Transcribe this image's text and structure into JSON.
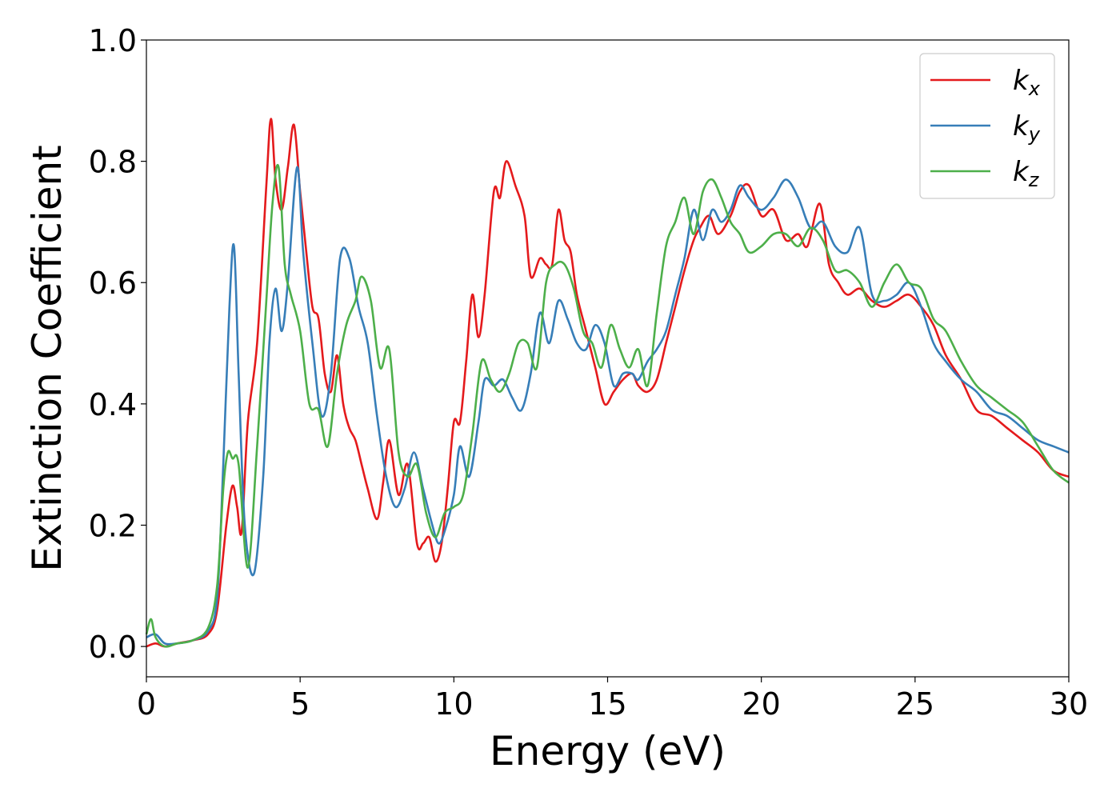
{
  "chart_data": {
    "type": "line",
    "xlabel": "Energy (eV)",
    "ylabel": "Extinction Coefficient",
    "xlim": [
      0,
      30
    ],
    "ylim": [
      -0.05,
      1.0
    ],
    "xticks": [
      0,
      5,
      10,
      15,
      20,
      25,
      30
    ],
    "yticks": [
      0.0,
      0.2,
      0.4,
      0.6,
      0.8,
      1.0
    ],
    "xtick_labels": [
      "0",
      "5",
      "10",
      "15",
      "20",
      "25",
      "30"
    ],
    "ytick_labels": [
      "0.0",
      "0.2",
      "0.4",
      "0.6",
      "0.8",
      "1.0"
    ],
    "grid": false,
    "legend_position": "top-right",
    "series": [
      {
        "name": "k",
        "subscript": "x",
        "color": "#e41a1c",
        "x": [
          0,
          0.3,
          0.6,
          1.0,
          1.5,
          2.0,
          2.3,
          2.6,
          2.8,
          2.95,
          3.1,
          3.3,
          3.6,
          3.9,
          4.05,
          4.2,
          4.4,
          4.6,
          4.8,
          5.0,
          5.2,
          5.4,
          5.6,
          5.8,
          6.0,
          6.2,
          6.4,
          6.6,
          6.8,
          7.0,
          7.2,
          7.5,
          7.7,
          7.9,
          8.2,
          8.5,
          8.8,
          9.0,
          9.2,
          9.4,
          9.6,
          9.8,
          10.0,
          10.2,
          10.4,
          10.6,
          10.8,
          11.0,
          11.3,
          11.5,
          11.7,
          12.0,
          12.3,
          12.5,
          12.8,
          13.0,
          13.2,
          13.4,
          13.6,
          13.8,
          14.0,
          14.3,
          14.6,
          14.9,
          15.2,
          15.5,
          15.8,
          16.0,
          16.3,
          16.6,
          16.9,
          17.2,
          17.5,
          17.8,
          18.0,
          18.3,
          18.6,
          19.0,
          19.3,
          19.6,
          20.0,
          20.4,
          20.8,
          21.2,
          21.5,
          21.9,
          22.2,
          22.5,
          22.8,
          23.2,
          23.6,
          24.0,
          24.4,
          24.8,
          25.2,
          25.6,
          26.0,
          26.5,
          27.0,
          27.5,
          28.0,
          28.5,
          29.0,
          29.5,
          30.0
        ],
        "y": [
          0.0,
          0.005,
          0.0,
          0.005,
          0.01,
          0.02,
          0.06,
          0.2,
          0.265,
          0.23,
          0.19,
          0.37,
          0.5,
          0.76,
          0.87,
          0.77,
          0.72,
          0.79,
          0.86,
          0.75,
          0.65,
          0.56,
          0.54,
          0.45,
          0.42,
          0.48,
          0.4,
          0.36,
          0.34,
          0.3,
          0.26,
          0.21,
          0.27,
          0.34,
          0.25,
          0.3,
          0.17,
          0.17,
          0.18,
          0.14,
          0.17,
          0.26,
          0.37,
          0.37,
          0.47,
          0.58,
          0.51,
          0.58,
          0.75,
          0.74,
          0.8,
          0.76,
          0.71,
          0.61,
          0.64,
          0.63,
          0.63,
          0.72,
          0.67,
          0.65,
          0.58,
          0.52,
          0.46,
          0.4,
          0.42,
          0.44,
          0.45,
          0.43,
          0.42,
          0.44,
          0.5,
          0.56,
          0.62,
          0.67,
          0.69,
          0.71,
          0.68,
          0.71,
          0.75,
          0.76,
          0.71,
          0.72,
          0.67,
          0.68,
          0.66,
          0.73,
          0.63,
          0.6,
          0.58,
          0.59,
          0.57,
          0.56,
          0.57,
          0.58,
          0.56,
          0.53,
          0.48,
          0.44,
          0.39,
          0.38,
          0.36,
          0.34,
          0.32,
          0.29,
          0.28
        ]
      },
      {
        "name": "k",
        "subscript": "y",
        "color": "#377eb8",
        "x": [
          0,
          0.3,
          0.6,
          1.0,
          1.5,
          2.0,
          2.3,
          2.5,
          2.7,
          2.85,
          3.0,
          3.2,
          3.5,
          3.8,
          4.0,
          4.2,
          4.4,
          4.6,
          4.9,
          5.1,
          5.4,
          5.7,
          6.0,
          6.3,
          6.6,
          6.9,
          7.2,
          7.5,
          7.8,
          8.1,
          8.4,
          8.7,
          9.0,
          9.3,
          9.5,
          9.7,
          10.0,
          10.2,
          10.5,
          10.8,
          11.0,
          11.3,
          11.6,
          11.9,
          12.2,
          12.5,
          12.8,
          13.1,
          13.4,
          13.7,
          14.0,
          14.3,
          14.6,
          14.9,
          15.2,
          15.5,
          15.8,
          16.0,
          16.3,
          16.6,
          16.9,
          17.2,
          17.5,
          17.8,
          18.1,
          18.4,
          18.7,
          19.0,
          19.3,
          19.6,
          20.0,
          20.4,
          20.8,
          21.2,
          21.6,
          22.0,
          22.4,
          22.8,
          23.2,
          23.6,
          24.0,
          24.4,
          24.8,
          25.2,
          25.6,
          26.0,
          26.5,
          27.0,
          27.5,
          28.0,
          28.5,
          29.0,
          29.5,
          30.0
        ],
        "y": [
          0.015,
          0.02,
          0.005,
          0.005,
          0.01,
          0.025,
          0.08,
          0.3,
          0.56,
          0.66,
          0.45,
          0.2,
          0.12,
          0.28,
          0.5,
          0.59,
          0.52,
          0.6,
          0.79,
          0.65,
          0.5,
          0.38,
          0.45,
          0.64,
          0.64,
          0.56,
          0.5,
          0.38,
          0.28,
          0.23,
          0.26,
          0.32,
          0.26,
          0.2,
          0.17,
          0.19,
          0.25,
          0.33,
          0.28,
          0.37,
          0.44,
          0.43,
          0.44,
          0.41,
          0.39,
          0.45,
          0.55,
          0.5,
          0.57,
          0.54,
          0.5,
          0.49,
          0.53,
          0.5,
          0.43,
          0.45,
          0.45,
          0.44,
          0.47,
          0.49,
          0.52,
          0.58,
          0.64,
          0.72,
          0.67,
          0.72,
          0.7,
          0.72,
          0.76,
          0.74,
          0.72,
          0.74,
          0.77,
          0.74,
          0.69,
          0.7,
          0.66,
          0.65,
          0.69,
          0.58,
          0.57,
          0.58,
          0.6,
          0.56,
          0.5,
          0.47,
          0.44,
          0.42,
          0.39,
          0.38,
          0.36,
          0.34,
          0.33,
          0.32
        ]
      },
      {
        "name": "k",
        "subscript": "z",
        "color": "#4daf4a",
        "x": [
          0,
          0.15,
          0.3,
          0.6,
          1.0,
          1.5,
          2.0,
          2.3,
          2.5,
          2.65,
          2.8,
          3.0,
          3.3,
          3.6,
          3.9,
          4.1,
          4.3,
          4.5,
          4.7,
          5.0,
          5.3,
          5.6,
          5.9,
          6.2,
          6.5,
          6.8,
          7.0,
          7.3,
          7.6,
          7.9,
          8.2,
          8.5,
          8.8,
          9.1,
          9.4,
          9.7,
          10.0,
          10.3,
          10.6,
          10.9,
          11.2,
          11.5,
          11.8,
          12.1,
          12.4,
          12.7,
          13.0,
          13.3,
          13.6,
          13.9,
          14.2,
          14.5,
          14.8,
          15.1,
          15.4,
          15.7,
          16.0,
          16.3,
          16.6,
          16.9,
          17.2,
          17.5,
          17.8,
          18.1,
          18.4,
          18.7,
          19.0,
          19.3,
          19.6,
          20.0,
          20.4,
          20.8,
          21.2,
          21.6,
          22.0,
          22.4,
          22.8,
          23.2,
          23.6,
          24.0,
          24.4,
          24.8,
          25.2,
          25.6,
          26.0,
          26.5,
          27.0,
          27.5,
          28.0,
          28.5,
          29.0,
          29.5,
          30.0
        ],
        "y": [
          0.02,
          0.045,
          0.015,
          0.0,
          0.005,
          0.01,
          0.03,
          0.1,
          0.26,
          0.32,
          0.31,
          0.3,
          0.13,
          0.33,
          0.57,
          0.73,
          0.79,
          0.63,
          0.58,
          0.52,
          0.4,
          0.39,
          0.33,
          0.45,
          0.53,
          0.57,
          0.61,
          0.57,
          0.46,
          0.49,
          0.32,
          0.28,
          0.3,
          0.22,
          0.18,
          0.22,
          0.23,
          0.25,
          0.35,
          0.47,
          0.44,
          0.42,
          0.45,
          0.5,
          0.5,
          0.46,
          0.6,
          0.63,
          0.63,
          0.59,
          0.52,
          0.5,
          0.46,
          0.53,
          0.49,
          0.46,
          0.49,
          0.43,
          0.55,
          0.66,
          0.7,
          0.74,
          0.68,
          0.75,
          0.77,
          0.74,
          0.7,
          0.68,
          0.65,
          0.66,
          0.68,
          0.68,
          0.66,
          0.69,
          0.67,
          0.62,
          0.62,
          0.6,
          0.56,
          0.6,
          0.63,
          0.6,
          0.59,
          0.54,
          0.52,
          0.47,
          0.43,
          0.41,
          0.39,
          0.37,
          0.33,
          0.29,
          0.27
        ]
      }
    ]
  }
}
